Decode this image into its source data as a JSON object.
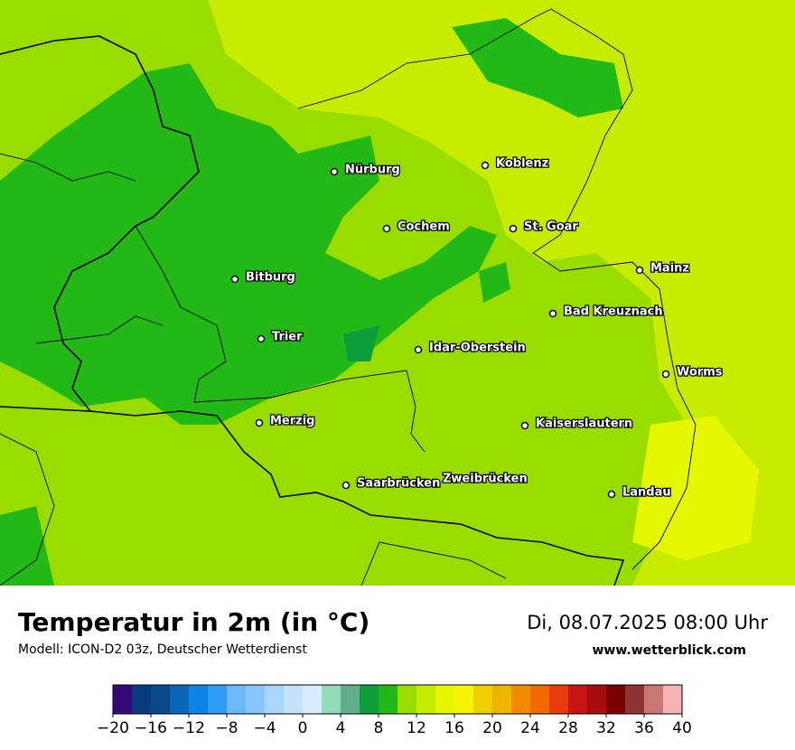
{
  "header": {
    "title": "Temperatur in 2m (in °C)",
    "subtitle": "Modell: ICON-D2 03z, Deutscher Wetterdienst",
    "date": "Di, 08.07.2025 08:00 Uhr",
    "site": "www.wetterblick.com"
  },
  "cities": [
    "Nürburg",
    "Koblenz",
    "Cochem",
    "St. Goar",
    "Mainz",
    "Bitburg",
    "Bad Kreuznach",
    "Trier",
    "Idar-Oberstein",
    "Worms",
    "Merzig",
    "Kaiserslautern",
    "Saarbrücken",
    "Zweibrücken",
    "Landau"
  ],
  "colorbar": {
    "lim": [
      -20,
      40
    ],
    "colors": [
      "#35097a",
      "#063c7e",
      "#0a4a8a",
      "#0a66b8",
      "#0a84e2",
      "#2c9cf4",
      "#6cb8f6",
      "#88c6f8",
      "#a8d6fa",
      "#c4e2fc",
      "#d8ecfd",
      "#92dcb8",
      "#62ae8c",
      "#0c9e3a",
      "#22b816",
      "#98dc00",
      "#c8ec00",
      "#e6f800",
      "#f6f400",
      "#f0d000",
      "#f0b400",
      "#f08a00",
      "#f06a00",
      "#e83a0a",
      "#c81414",
      "#a80c0c",
      "#7a0000",
      "#8e3434",
      "#c87676",
      "#f4b4b4"
    ],
    "ticks": [
      {
        "value": -20,
        "label": "−20"
      },
      {
        "value": -16,
        "label": "−16"
      },
      {
        "value": -12,
        "label": "−12"
      },
      {
        "value": -8,
        "label": "−8"
      },
      {
        "value": -4,
        "label": "−4"
      },
      0,
      4,
      8,
      12,
      16,
      20,
      24,
      28,
      32,
      36,
      40
    ]
  }
}
